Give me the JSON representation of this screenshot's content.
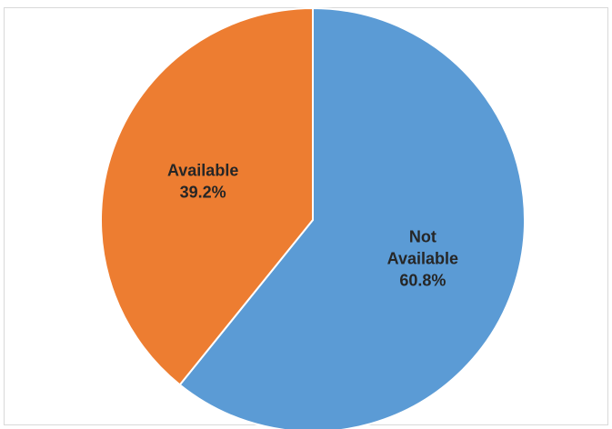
{
  "chart_data": {
    "type": "pie",
    "title": "",
    "slices": [
      {
        "label_lines": [
          "Not",
          "Available"
        ],
        "value": 60.8,
        "value_text": "60.8%",
        "color": "#5b9bd5"
      },
      {
        "label_lines": [
          "Available"
        ],
        "value": 39.2,
        "value_text": "39.2%",
        "color": "#ed7d31"
      }
    ],
    "start_angle_deg": 0,
    "direction": "clockwise",
    "legend": "none"
  }
}
